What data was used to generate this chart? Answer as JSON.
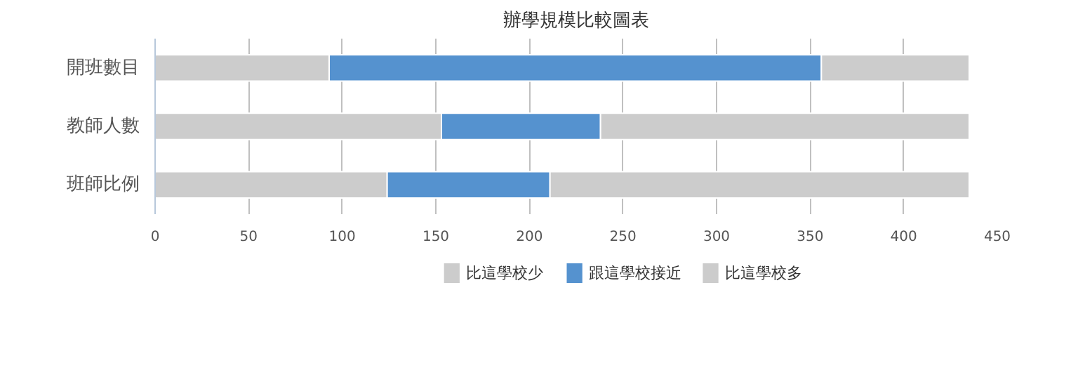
{
  "chart_data": {
    "type": "bar",
    "title": "辦學規模比較圖表",
    "orientation": "horizontal",
    "stacked": true,
    "categories": [
      "開班數目",
      "教師人數",
      "班師比例"
    ],
    "series": [
      {
        "name": "比這學校少",
        "color": "#cccccc",
        "values": [
          93,
          153,
          124
        ]
      },
      {
        "name": "跟這學校接近",
        "color": "#5592cf",
        "values": [
          263,
          85,
          87
        ]
      },
      {
        "name": "比這學校多",
        "color": "#cccccc",
        "values": [
          79,
          197,
          224
        ]
      }
    ],
    "xlim": [
      0,
      450
    ],
    "xticks": [
      0,
      50,
      100,
      150,
      200,
      250,
      300,
      350,
      400,
      450
    ],
    "grid": "x",
    "legend": "bottom"
  }
}
